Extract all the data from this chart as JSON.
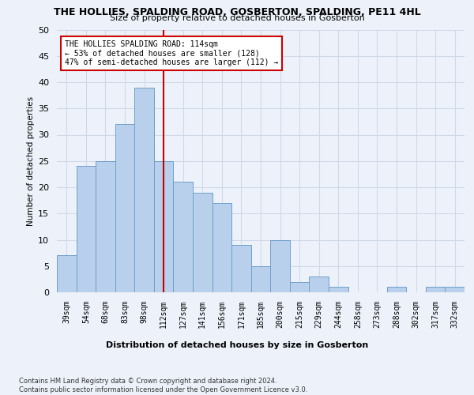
{
  "title": "THE HOLLIES, SPALDING ROAD, GOSBERTON, SPALDING, PE11 4HL",
  "subtitle": "Size of property relative to detached houses in Gosberton",
  "xlabel_bottom": "Distribution of detached houses by size in Gosberton",
  "ylabel": "Number of detached properties",
  "categories": [
    "39sqm",
    "54sqm",
    "68sqm",
    "83sqm",
    "98sqm",
    "112sqm",
    "127sqm",
    "141sqm",
    "156sqm",
    "171sqm",
    "185sqm",
    "200sqm",
    "215sqm",
    "229sqm",
    "244sqm",
    "258sqm",
    "273sqm",
    "288sqm",
    "302sqm",
    "317sqm",
    "332sqm"
  ],
  "values": [
    7,
    24,
    25,
    32,
    39,
    25,
    21,
    19,
    17,
    9,
    5,
    10,
    2,
    3,
    1,
    0,
    0,
    1,
    0,
    1,
    1
  ],
  "bar_color": "#b8d0eb",
  "bar_edge_color": "#6fa0cc",
  "vline_x": 5,
  "vline_color": "#cc0000",
  "annotation_text": "THE HOLLIES SPALDING ROAD: 114sqm\n← 53% of detached houses are smaller (128)\n47% of semi-detached houses are larger (112) →",
  "annotation_box_color": "#ffffff",
  "annotation_box_edge_color": "#cc0000",
  "ylim": [
    0,
    50
  ],
  "yticks": [
    0,
    5,
    10,
    15,
    20,
    25,
    30,
    35,
    40,
    45,
    50
  ],
  "grid_color": "#d0d8e8",
  "bg_color": "#edf2fa",
  "footnote": "Contains HM Land Registry data © Crown copyright and database right 2024.\nContains public sector information licensed under the Open Government Licence v3.0."
}
